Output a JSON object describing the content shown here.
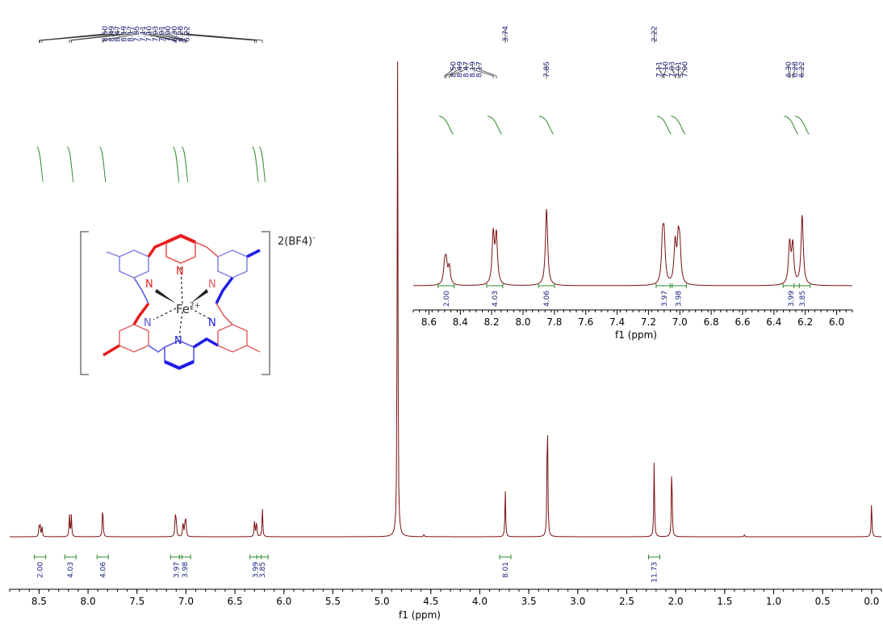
{
  "chart_data": {
    "type": "line",
    "xlabel": "f1 (ppm)",
    "x_axis_reversed": true,
    "xlim": [
      8.8,
      -0.1
    ],
    "x_ticks": [
      "8.5",
      "8.0",
      "7.5",
      "7.0",
      "6.5",
      "6.0",
      "5.5",
      "5.0",
      "4.5",
      "4.0",
      "3.5",
      "3.0",
      "2.5",
      "2.0",
      "1.5",
      "1.0",
      "0.5",
      "0.0"
    ],
    "peak_labels": {
      "group1": [
        "8.50",
        "8.49",
        "8.47",
        "8.19",
        "8.17",
        "7.85",
        "7.11",
        "7.10",
        "7.03",
        "7.01",
        "7.00",
        "6.30",
        "6.28",
        "6.22"
      ],
      "group2": [
        "3.74"
      ],
      "group3": [
        "2.22"
      ]
    },
    "integrations": [
      {
        "center": 8.49,
        "value": "2.00"
      },
      {
        "center": 8.18,
        "value": "4.03"
      },
      {
        "center": 7.85,
        "value": "4.06"
      },
      {
        "center": 7.1,
        "value": "3.97"
      },
      {
        "center": 7.01,
        "value": "3.98"
      },
      {
        "center": 6.29,
        "value": "3.99"
      },
      {
        "center": 6.22,
        "value": "3.85"
      },
      {
        "center": 3.74,
        "value": "8.01"
      },
      {
        "center": 2.22,
        "value": "11.73"
      }
    ],
    "peaks": [
      {
        "ppm": 8.5,
        "height": 0.02
      },
      {
        "ppm": 8.49,
        "height": 0.025
      },
      {
        "ppm": 8.47,
        "height": 0.02
      },
      {
        "ppm": 8.19,
        "height": 0.045
      },
      {
        "ppm": 8.17,
        "height": 0.045
      },
      {
        "ppm": 7.85,
        "height": 0.07
      },
      {
        "ppm": 7.11,
        "height": 0.04
      },
      {
        "ppm": 7.1,
        "height": 0.04
      },
      {
        "ppm": 7.03,
        "height": 0.035
      },
      {
        "ppm": 7.01,
        "height": 0.035
      },
      {
        "ppm": 7.0,
        "height": 0.03
      },
      {
        "ppm": 6.3,
        "height": 0.035
      },
      {
        "ppm": 6.28,
        "height": 0.035
      },
      {
        "ppm": 6.22,
        "height": 0.06
      },
      {
        "ppm": 4.84,
        "height": 1.0
      },
      {
        "ppm": 4.57,
        "height": 0.005
      },
      {
        "ppm": 3.74,
        "height": 0.095
      },
      {
        "ppm": 3.31,
        "height": 0.28
      },
      {
        "ppm": 2.22,
        "height": 0.155
      },
      {
        "ppm": 2.04,
        "height": 0.16
      },
      {
        "ppm": 1.3,
        "height": 0.004
      },
      {
        "ppm": 0.0,
        "height": 0.075
      }
    ],
    "inset": {
      "xlabel": "f1 (ppm)",
      "xlim": [
        8.7,
        5.9
      ],
      "x_ticks": [
        "8.6",
        "8.4",
        "8.2",
        "8.0",
        "7.8",
        "7.6",
        "7.4",
        "7.2",
        "7.0",
        "6.8",
        "6.6",
        "6.4",
        "6.2",
        "6.0"
      ],
      "peak_labels": [
        "8.50",
        "8.49",
        "8.47",
        "8.19",
        "8.17",
        "7.85",
        "7.11",
        "7.10",
        "7.03",
        "7.01",
        "7.00",
        "6.30",
        "6.28",
        "6.22"
      ],
      "integrations": [
        {
          "center": 8.49,
          "value": "2.00"
        },
        {
          "center": 8.18,
          "value": "4.03"
        },
        {
          "center": 7.85,
          "value": "4.06"
        },
        {
          "center": 7.1,
          "value": "3.97"
        },
        {
          "center": 7.01,
          "value": "3.98"
        },
        {
          "center": 6.29,
          "value": "3.99"
        },
        {
          "center": 6.22,
          "value": "3.85"
        }
      ],
      "peaks": [
        {
          "ppm": 8.5,
          "height": 0.22
        },
        {
          "ppm": 8.49,
          "height": 0.26
        },
        {
          "ppm": 8.47,
          "height": 0.22
        },
        {
          "ppm": 8.19,
          "height": 0.62
        },
        {
          "ppm": 8.17,
          "height": 0.6
        },
        {
          "ppm": 7.85,
          "height": 0.95
        },
        {
          "ppm": 7.11,
          "height": 0.5
        },
        {
          "ppm": 7.1,
          "height": 0.52
        },
        {
          "ppm": 7.03,
          "height": 0.5
        },
        {
          "ppm": 7.01,
          "height": 0.48
        },
        {
          "ppm": 7.0,
          "height": 0.4
        },
        {
          "ppm": 6.3,
          "height": 0.5
        },
        {
          "ppm": 6.28,
          "height": 0.48
        },
        {
          "ppm": 6.22,
          "height": 0.86
        }
      ]
    },
    "colors": {
      "spectrum": "#7b1010",
      "integral": "#2e8b2e",
      "peak_label": "#1a237e"
    }
  },
  "molecule": {
    "counterion_base": "2(BF4)",
    "counterion_charge": "-",
    "metal_base": "Fe",
    "metal_charge": "2+",
    "atom_n": "N"
  }
}
